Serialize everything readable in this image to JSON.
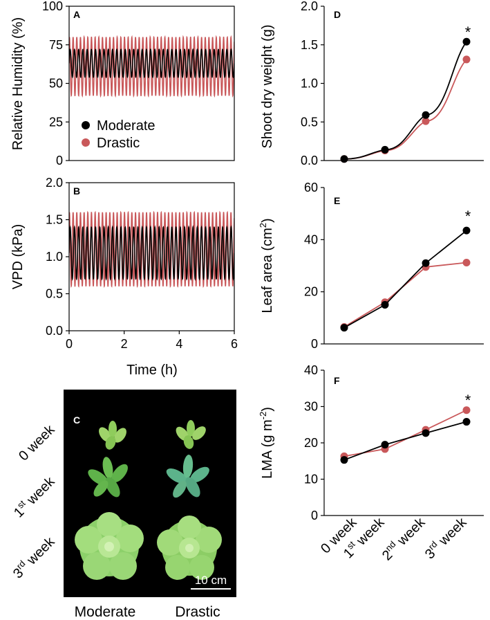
{
  "colors": {
    "moderate": "#000000",
    "drastic": "#c9585a",
    "photo_bg": "#000000",
    "leaf": "#7bc74f"
  },
  "chart_data": [
    {
      "panel": "A",
      "type": "line",
      "xlabel": "",
      "ylabel": "Relative Humidity (%)",
      "xlim": [
        0,
        6
      ],
      "ylim": [
        0,
        100
      ],
      "yticks": [
        0,
        25,
        50,
        75,
        100
      ],
      "legend_position": "bottom-left",
      "series": [
        {
          "name": "Moderate",
          "kind": "oscillation",
          "center": 63,
          "amplitude": 9,
          "cycles_per_hour": 6.5
        },
        {
          "name": "Drastic",
          "kind": "oscillation",
          "center": 61,
          "amplitude": 19,
          "cycles_per_hour": 7.5
        }
      ]
    },
    {
      "panel": "B",
      "type": "line",
      "xlabel": "Time (h)",
      "ylabel": "VPD (kPa)",
      "xlim": [
        0,
        6
      ],
      "ylim": [
        0,
        2.0
      ],
      "xticks": [
        "0",
        "2",
        "4",
        "6"
      ],
      "yticks": [
        "0.0",
        "0.5",
        "1.0",
        "1.5",
        "2.0"
      ],
      "series": [
        {
          "name": "Moderate",
          "kind": "oscillation",
          "center": 1.05,
          "amplitude": 0.35,
          "cycles_per_hour": 6.5
        },
        {
          "name": "Drastic",
          "kind": "oscillation",
          "center": 1.1,
          "amplitude": 0.5,
          "cycles_per_hour": 7.5
        }
      ]
    },
    {
      "panel": "D",
      "type": "line",
      "ylabel": "Shoot dry  weight (g)",
      "ylim": [
        0,
        2.0
      ],
      "yticks": [
        "0.0",
        "0.5",
        "1.0",
        "1.5",
        "2.0"
      ],
      "categories": [
        "0 week",
        "1st week",
        "2nd week",
        "3rd week"
      ],
      "series": [
        {
          "name": "Moderate",
          "values": [
            0.02,
            0.14,
            0.59,
            1.54
          ]
        },
        {
          "name": "Drastic",
          "values": [
            0.02,
            0.13,
            0.51,
            1.31
          ]
        }
      ],
      "annotation": "*"
    },
    {
      "panel": "E",
      "type": "line",
      "ylabel": "Leaf area (cm2)",
      "ylim": [
        0,
        60
      ],
      "yticks": [
        "0",
        "20",
        "40",
        "60"
      ],
      "categories": [
        "0 week",
        "1st week",
        "2nd week",
        "3rd week"
      ],
      "series": [
        {
          "name": "Moderate",
          "values": [
            6.2,
            15.0,
            31.0,
            43.5
          ]
        },
        {
          "name": "Drastic",
          "values": [
            6.5,
            16.0,
            29.5,
            31.2
          ]
        }
      ],
      "annotation": "*"
    },
    {
      "panel": "F",
      "type": "line",
      "ylabel": "LMA (g m-2)",
      "ylim": [
        0,
        40
      ],
      "yticks": [
        "0",
        "10",
        "20",
        "30",
        "40"
      ],
      "categories": [
        "0 week",
        "1st week",
        "2nd week",
        "3rd week"
      ],
      "series": [
        {
          "name": "Moderate",
          "values": [
            15.3,
            19.5,
            22.7,
            25.8
          ]
        },
        {
          "name": "Drastic",
          "values": [
            16.3,
            18.3,
            23.6,
            29.0
          ]
        }
      ],
      "annotation": "*"
    }
  ],
  "photo": {
    "panel": "C",
    "row_labels": [
      {
        "base": "0 week",
        "sup": "",
        "rest": ""
      },
      {
        "base": "1",
        "sup": "st",
        "rest": " week"
      },
      {
        "base": "3",
        "sup": "rd",
        "rest": " week"
      }
    ],
    "column_labels": [
      "Moderate",
      "Drastic"
    ],
    "scale_bar": "10 cm"
  },
  "category_labels": [
    {
      "base": "0 week",
      "sup": "",
      "rest": ""
    },
    {
      "base": "1",
      "sup": "st",
      "rest": " week"
    },
    {
      "base": "2",
      "sup": "nd",
      "rest": " week"
    },
    {
      "base": "3",
      "sup": "rd",
      "rest": " week"
    }
  ],
  "labels": {
    "a_ylabel": "Relative Humidity (%)",
    "b_ylabel": "VPD (kPa)",
    "b_xlabel": "Time (h)",
    "d_ylabel": "Shoot dry  weight (g)",
    "e_ylabel_main": "Leaf area (cm",
    "e_ylabel_sup": "2",
    "e_ylabel_end": ")",
    "f_ylabel_main": "LMA (g m",
    "f_ylabel_sup": "-2",
    "f_ylabel_end": ")"
  }
}
